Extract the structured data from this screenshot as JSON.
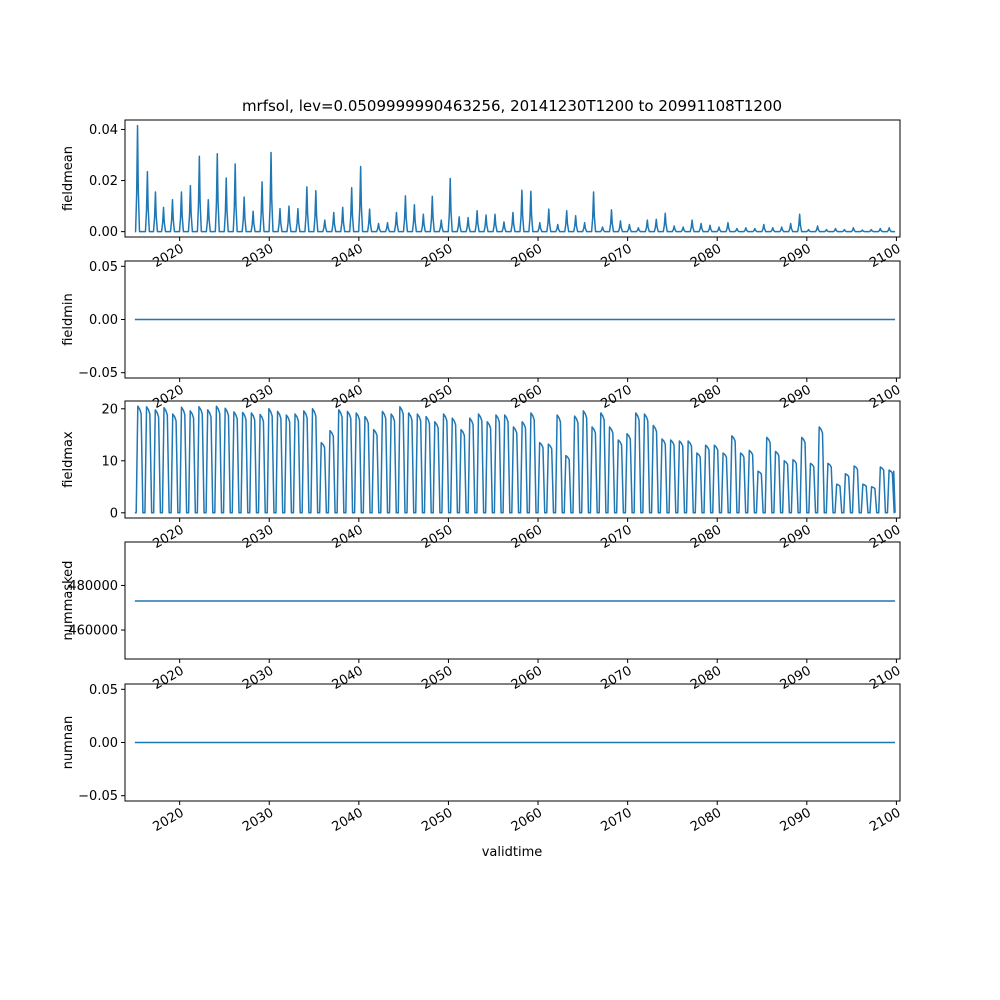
{
  "title": "mrfsol, lev=0.0509999990463256, 20141230T1200 to 20991108T1200",
  "xlabel": "validtime",
  "x_ticks": [
    "2020",
    "2030",
    "2040",
    "2050",
    "2060",
    "2070",
    "2080",
    "2090",
    "2100"
  ],
  "line_color": "#1f77b4",
  "chart_data": [
    {
      "type": "line",
      "ylabel": "fieldmean",
      "xlim": [
        2013.9,
        2100.4
      ],
      "ylim": [
        -0.0021,
        0.0437
      ],
      "y_ticks": [
        "0.00",
        "0.02",
        "0.04"
      ],
      "y_tick_values": [
        0,
        0.02,
        0.04
      ],
      "series_kind": "seasonal-peaks",
      "x_start": 2015.0,
      "x_end": 2099.85,
      "peaks": [
        [
          2015.3,
          0.0415
        ],
        [
          2016.4,
          0.0235
        ],
        [
          2017.3,
          0.0155
        ],
        [
          2018.2,
          0.0095
        ],
        [
          2019.2,
          0.0125
        ],
        [
          2020.2,
          0.0155
        ],
        [
          2021.2,
          0.018
        ],
        [
          2022.2,
          0.0295
        ],
        [
          2023.2,
          0.0125
        ],
        [
          2024.2,
          0.0305
        ],
        [
          2025.2,
          0.021
        ],
        [
          2026.2,
          0.0265
        ],
        [
          2027.2,
          0.0135
        ],
        [
          2028.2,
          0.008
        ],
        [
          2029.2,
          0.0195
        ],
        [
          2030.2,
          0.031
        ],
        [
          2031.2,
          0.009
        ],
        [
          2032.2,
          0.01
        ],
        [
          2033.2,
          0.009
        ],
        [
          2034.2,
          0.0175
        ],
        [
          2035.2,
          0.016
        ],
        [
          2036.2,
          0.0045
        ],
        [
          2037.2,
          0.0075
        ],
        [
          2038.2,
          0.0095
        ],
        [
          2039.2,
          0.0172
        ],
        [
          2040.2,
          0.0255
        ],
        [
          2041.2,
          0.0088
        ],
        [
          2042.2,
          0.0032
        ],
        [
          2043.2,
          0.0035
        ],
        [
          2044.2,
          0.0075
        ],
        [
          2045.2,
          0.014
        ],
        [
          2046.2,
          0.0105
        ],
        [
          2047.2,
          0.0068
        ],
        [
          2048.2,
          0.0138
        ],
        [
          2049.2,
          0.0045
        ],
        [
          2050.2,
          0.0208
        ],
        [
          2051.2,
          0.0058
        ],
        [
          2052.2,
          0.0055
        ],
        [
          2053.2,
          0.0082
        ],
        [
          2054.2,
          0.0065
        ],
        [
          2055.2,
          0.0068
        ],
        [
          2056.2,
          0.0038
        ],
        [
          2057.2,
          0.0075
        ],
        [
          2058.2,
          0.0162
        ],
        [
          2059.2,
          0.0158
        ],
        [
          2060.2,
          0.0035
        ],
        [
          2061.2,
          0.0088
        ],
        [
          2062.2,
          0.0028
        ],
        [
          2063.2,
          0.0082
        ],
        [
          2064.2,
          0.0062
        ],
        [
          2065.2,
          0.0035
        ],
        [
          2066.2,
          0.0155
        ],
        [
          2067.2,
          0.0018
        ],
        [
          2068.2,
          0.0085
        ],
        [
          2069.2,
          0.0042
        ],
        [
          2070.2,
          0.0028
        ],
        [
          2071.2,
          0.0015
        ],
        [
          2072.2,
          0.0045
        ],
        [
          2073.2,
          0.0048
        ],
        [
          2074.2,
          0.0072
        ],
        [
          2075.2,
          0.0022
        ],
        [
          2076.2,
          0.0018
        ],
        [
          2077.2,
          0.0045
        ],
        [
          2078.2,
          0.0032
        ],
        [
          2079.2,
          0.0025
        ],
        [
          2080.2,
          0.0018
        ],
        [
          2081.2,
          0.0035
        ],
        [
          2082.2,
          0.0012
        ],
        [
          2083.2,
          0.0015
        ],
        [
          2084.2,
          0.0012
        ],
        [
          2085.2,
          0.0028
        ],
        [
          2086.2,
          0.0015
        ],
        [
          2087.2,
          0.0018
        ],
        [
          2088.2,
          0.0032
        ],
        [
          2089.2,
          0.0068
        ],
        [
          2090.2,
          0.0008
        ],
        [
          2091.2,
          0.0022
        ],
        [
          2092.2,
          0.0008
        ],
        [
          2093.2,
          0.0012
        ],
        [
          2094.2,
          0.0008
        ],
        [
          2095.2,
          0.0015
        ],
        [
          2096.2,
          0.0006
        ],
        [
          2097.2,
          0.0008
        ],
        [
          2098.2,
          0.0012
        ],
        [
          2099.2,
          0.0015
        ]
      ]
    },
    {
      "type": "line",
      "ylabel": "fieldmin",
      "xlim": [
        2013.9,
        2100.4
      ],
      "ylim": [
        -0.055,
        0.055
      ],
      "y_ticks": [
        "0.05",
        "0.00",
        "−0.05"
      ],
      "y_tick_values": [
        0.05,
        0,
        -0.05
      ],
      "series_kind": "constant",
      "x_start": 2015.0,
      "x_end": 2099.85,
      "value": 0.0
    },
    {
      "type": "line",
      "ylabel": "fieldmax",
      "xlim": [
        2013.9,
        2100.4
      ],
      "ylim": [
        -1.0,
        21.5
      ],
      "y_ticks": [
        "20",
        "10",
        "0"
      ],
      "y_tick_values": [
        20,
        10,
        0
      ],
      "series_kind": "seasonal-plateaus",
      "x_start": 2015.0,
      "x_end": 2099.85,
      "plateaus": [
        20.5,
        20.4,
        19.8,
        20.2,
        19.0,
        20.3,
        19.6,
        20.4,
        19.8,
        20.5,
        20.1,
        19.4,
        19.3,
        19.2,
        18.9,
        20.0,
        19.5,
        18.8,
        19.0,
        19.6,
        20.0,
        13.5,
        15.8,
        19.8,
        19.5,
        19.2,
        18.5,
        16.0,
        19.5,
        19.0,
        20.4,
        19.2,
        19.0,
        18.5,
        17.5,
        19.0,
        18.2,
        16.0,
        18.2,
        19.0,
        17.5,
        18.8,
        18.8,
        16.5,
        17.5,
        19.2,
        13.5,
        13.2,
        18.8,
        11.0,
        18.6,
        19.6,
        16.5,
        19.2,
        16.5,
        14.0,
        15.2,
        19.2,
        19.0,
        16.8,
        14.2,
        14.0,
        13.8,
        13.8,
        11.5,
        13.0,
        13.0,
        11.5,
        14.8,
        11.5,
        12.0,
        8.0,
        14.5,
        11.8,
        10.0,
        10.2,
        14.5,
        9.5,
        16.5,
        9.5,
        5.5,
        7.5,
        9.0,
        5.5,
        5.0,
        8.8,
        8.2
      ]
    },
    {
      "type": "line",
      "ylabel": "nummasked",
      "xlim": [
        2013.9,
        2100.4
      ],
      "ylim": [
        447000,
        499500
      ],
      "y_ticks": [
        "480000",
        "460000"
      ],
      "y_tick_values": [
        480000,
        460000
      ],
      "series_kind": "constant",
      "x_start": 2015.0,
      "x_end": 2099.85,
      "value": 473000
    },
    {
      "type": "line",
      "ylabel": "numnan",
      "xlim": [
        2013.9,
        2100.4
      ],
      "ylim": [
        -0.055,
        0.055
      ],
      "y_ticks": [
        "0.05",
        "0.00",
        "−0.05"
      ],
      "y_tick_values": [
        0.05,
        0,
        -0.05
      ],
      "series_kind": "constant",
      "x_start": 2015.0,
      "x_end": 2099.85,
      "value": 0.0
    }
  ]
}
